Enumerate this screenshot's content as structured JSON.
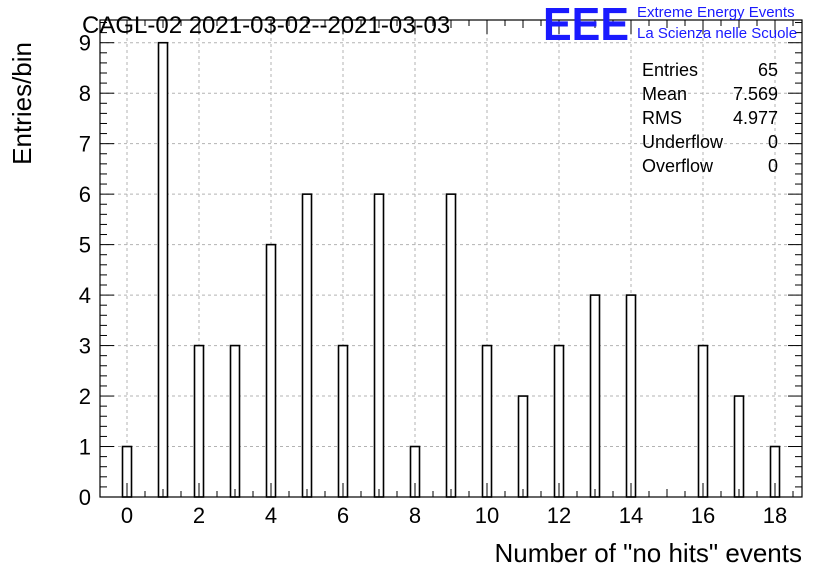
{
  "chart_data": {
    "type": "bar",
    "title": "CAGL-02 2021-03-02--2021-03-03",
    "xlabel": "Number of \"no hits\" events",
    "ylabel": "Entries/bin",
    "xlim": [
      -0.75,
      18.75
    ],
    "ylim": [
      0,
      9.45
    ],
    "x_ticks": [
      "0",
      "2",
      "4",
      "6",
      "8",
      "10",
      "12",
      "14",
      "16",
      "18"
    ],
    "y_ticks": [
      "0",
      "1",
      "2",
      "3",
      "4",
      "5",
      "6",
      "7",
      "8",
      "9"
    ],
    "grid": true,
    "bin_width": 0.25,
    "x": [
      0,
      1,
      2,
      3,
      4,
      5,
      6,
      7,
      8,
      9,
      10,
      11,
      12,
      13,
      14,
      15,
      16,
      17,
      18
    ],
    "values": [
      1,
      9,
      3,
      3,
      5,
      6,
      3,
      6,
      1,
      6,
      3,
      2,
      3,
      4,
      4,
      0,
      3,
      2,
      1
    ],
    "bar_color": "#ffffff",
    "edge_color": "#000000",
    "stats": [
      {
        "label": "Entries",
        "value": "65"
      },
      {
        "label": "Mean",
        "value": "7.569"
      },
      {
        "label": "RMS",
        "value": "4.977"
      },
      {
        "label": "Underflow",
        "value": "0"
      },
      {
        "label": "Overflow",
        "value": "0"
      }
    ]
  },
  "logo": {
    "mark": "EEE",
    "line1": "Extreme Energy Events",
    "line2": "La Scienza nelle Scuole",
    "color": "#1a1aff"
  }
}
